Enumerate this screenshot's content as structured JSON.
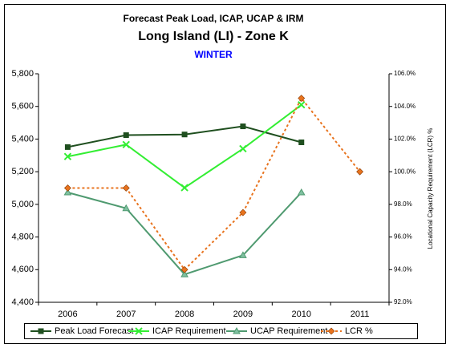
{
  "chart_data": {
    "type": "line",
    "title": "Forecast Peak Load, ICAP, UCAP & IRM",
    "subtitle": "Long Island (LI) - Zone K",
    "season": "WINTER",
    "y2_label": "Locational Capacity Requirement (LCR) %",
    "categories": [
      "2006",
      "2007",
      "2008",
      "2009",
      "2010",
      "2011"
    ],
    "series": [
      {
        "name": "Peak Load Forecast",
        "color": "#1f4f1f",
        "marker": "square",
        "line_style": "solid",
        "values": [
          5351,
          5424,
          5428,
          5478,
          5380,
          null
        ]
      },
      {
        "name": "ICAP Requirement",
        "color": "#33ee33",
        "marker": "x",
        "line_style": "solid",
        "values": [
          5293,
          5366,
          5102,
          5341,
          5610,
          null
        ]
      },
      {
        "name": "UCAP Requirement",
        "color": "#4f9a70",
        "marker": "triangle",
        "line_style": "solid",
        "values": [
          5073,
          4976,
          4571,
          4688,
          5073,
          null
        ]
      },
      {
        "name": "LCR %",
        "color": "#e8731e",
        "marker": "diamond",
        "line_style": "dotted",
        "axis": "y2",
        "values": [
          99.0,
          99.0,
          94.0,
          97.5,
          104.5,
          100.0
        ]
      }
    ],
    "ylim": [
      4400,
      5800
    ],
    "yticks": [
      {
        "value": 4400,
        "label": "4,400"
      },
      {
        "value": 4600,
        "label": "4,600"
      },
      {
        "value": 4800,
        "label": "4,800"
      },
      {
        "value": 5000,
        "label": "5,000"
      },
      {
        "value": 5200,
        "label": "5,200"
      },
      {
        "value": 5400,
        "label": "5,400"
      },
      {
        "value": 5600,
        "label": "5,600"
      },
      {
        "value": 5800,
        "label": "5,800"
      }
    ],
    "y2lim": [
      92,
      106
    ],
    "y2ticks": [
      {
        "value": 92,
        "label": "92.0%"
      },
      {
        "value": 94,
        "label": "94.0%"
      },
      {
        "value": 96,
        "label": "96.0%"
      },
      {
        "value": 98,
        "label": "98.0%"
      },
      {
        "value": 100,
        "label": "100.0%"
      },
      {
        "value": 102,
        "label": "102.0%"
      },
      {
        "value": 104,
        "label": "104.0%"
      },
      {
        "value": 106,
        "label": "106.0%"
      }
    ],
    "grid": false,
    "legend": "bottom"
  }
}
